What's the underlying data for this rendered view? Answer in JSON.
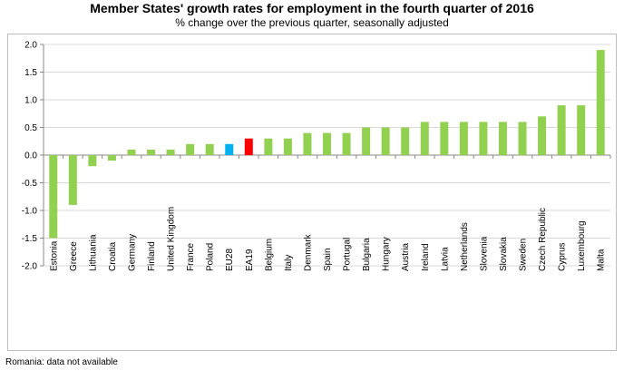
{
  "chart_data": {
    "type": "bar",
    "title": "Member States' growth rates for employment in the fourth quarter of 2016",
    "subtitle": "% change over the previous quarter, seasonally adjusted",
    "categories": [
      "Estonia",
      "Greece",
      "Lithuania",
      "Croatia",
      "Germany",
      "Finland",
      "United Kingdom",
      "France",
      "Poland",
      "EU28",
      "EA19",
      "Belgium",
      "Italy",
      "Denmark",
      "Spain",
      "Portugal",
      "Bulgaria",
      "Hungary",
      "Austria",
      "Ireland",
      "Latvia",
      "Netherlands",
      "Slovenia",
      "Slovakia",
      "Sweden",
      "Czech Republic",
      "Cyprus",
      "Luxembourg",
      "Malta"
    ],
    "values": [
      -1.5,
      -0.9,
      -0.2,
      -0.1,
      0.1,
      0.1,
      0.1,
      0.2,
      0.2,
      0.2,
      0.3,
      0.3,
      0.3,
      0.4,
      0.4,
      0.4,
      0.5,
      0.5,
      0.5,
      0.6,
      0.6,
      0.6,
      0.6,
      0.6,
      0.6,
      0.7,
      0.9,
      0.9,
      1.9
    ],
    "ylim": [
      -2.0,
      2.0
    ],
    "yticks": [
      "2.0",
      "1.5",
      "1.0",
      "0.5",
      "0.0",
      "-0.5",
      "-1.0",
      "-1.5",
      "-2.0"
    ],
    "xlabel": "",
    "ylabel": "",
    "grid": true,
    "colors": {
      "default": "#92d050",
      "EU28": "#00b0f0",
      "EA19": "#ff0000"
    }
  },
  "footnote": "Romania: data not available"
}
